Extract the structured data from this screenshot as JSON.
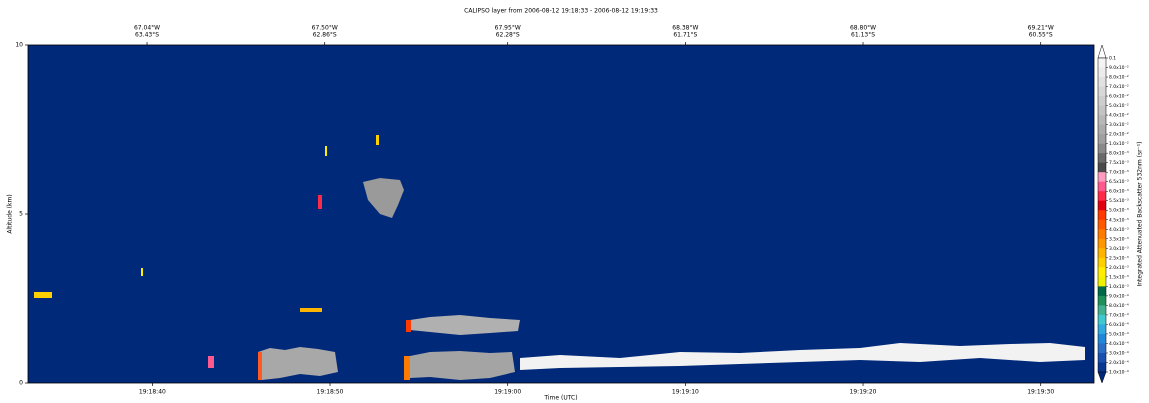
{
  "chart_data": {
    "type": "curtain",
    "title": "CALIPSO layer from 2006-08-12 19:18:33  -  2006-08-12 19:19:33",
    "xlabel": "Time (UTC)",
    "ylabel": "Altitude (km)",
    "xlim": [
      69513,
      69573
    ],
    "xticks": [
      {
        "value": 69520,
        "label": "19:18:40"
      },
      {
        "value": 69530,
        "label": "19:18:50"
      },
      {
        "value": 69540,
        "label": "19:19:00"
      },
      {
        "value": 69550,
        "label": "19:19:10"
      },
      {
        "value": 69560,
        "label": "19:19:20"
      },
      {
        "value": 69570,
        "label": "19:19:30"
      }
    ],
    "top_ticks": [
      {
        "value": 69519.7,
        "lon": "67.04°W",
        "lat": "63.43°S"
      },
      {
        "value": 69529.7,
        "lon": "67.50°W",
        "lat": "62.86°S"
      },
      {
        "value": 69540,
        "lon": "67.95°W",
        "lat": "62.28°S"
      },
      {
        "value": 69550,
        "lon": "68.38°W",
        "lat": "61.71°S"
      },
      {
        "value": 69560,
        "lon": "68.80°W",
        "lat": "61.13°S"
      },
      {
        "value": 69570,
        "lon": "69.21°W",
        "lat": "60.55°S"
      }
    ],
    "ylim": [
      0,
      10
    ],
    "yticks": [
      0,
      5,
      10
    ],
    "background": "#00297a",
    "colorbar": {
      "label": "Integrated Attenuated Backscatter 532nm (sr⁻¹)",
      "ticks": [
        {
          "value": 0.1,
          "label": "0.1"
        },
        {
          "value": 0.09,
          "label": "9.0x10⁻²"
        },
        {
          "value": 0.08,
          "label": "8.0x10⁻²"
        },
        {
          "value": 0.07,
          "label": "7.0x10⁻²"
        },
        {
          "value": 0.06,
          "label": "6.0x10⁻²"
        },
        {
          "value": 0.05,
          "label": "5.0x10⁻²"
        },
        {
          "value": 0.04,
          "label": "4.0x10⁻²"
        },
        {
          "value": 0.03,
          "label": "3.0x10⁻²"
        },
        {
          "value": 0.02,
          "label": "2.0x10⁻²"
        },
        {
          "value": 0.01,
          "label": "1.0x10⁻²"
        },
        {
          "value": 0.008,
          "label": "8.0x10⁻³"
        },
        {
          "value": 0.0075,
          "label": "7.5x10⁻³"
        },
        {
          "value": 0.007,
          "label": "7.0x10⁻³"
        },
        {
          "value": 0.0065,
          "label": "6.5x10⁻³"
        },
        {
          "value": 0.006,
          "label": "6.0x10⁻³"
        },
        {
          "value": 0.0055,
          "label": "5.5x10⁻³"
        },
        {
          "value": 0.005,
          "label": "5.0x10⁻³"
        },
        {
          "value": 0.0045,
          "label": "4.5x10⁻³"
        },
        {
          "value": 0.004,
          "label": "4.0x10⁻³"
        },
        {
          "value": 0.0035,
          "label": "3.5x10⁻³"
        },
        {
          "value": 0.003,
          "label": "3.0x10⁻³"
        },
        {
          "value": 0.0025,
          "label": "2.5x10⁻³"
        },
        {
          "value": 0.002,
          "label": "2.0x10⁻³"
        },
        {
          "value": 0.0015,
          "label": "1.5x10⁻³"
        },
        {
          "value": 0.001,
          "label": "1.0x10⁻³"
        },
        {
          "value": 0.0009,
          "label": "9.0x10⁻⁴"
        },
        {
          "value": 0.0008,
          "label": "8.0x10⁻⁴"
        },
        {
          "value": 0.0007,
          "label": "7.0x10⁻⁴"
        },
        {
          "value": 0.0006,
          "label": "6.0x10⁻⁴"
        },
        {
          "value": 0.0005,
          "label": "5.0x10⁻⁴"
        },
        {
          "value": 0.0004,
          "label": "4.0x10⁻⁴"
        },
        {
          "value": 0.0003,
          "label": "3.0x10⁻⁴"
        },
        {
          "value": 0.0002,
          "label": "2.0x10⁻⁴"
        },
        {
          "value": 0.0001,
          "label": "1.0x10⁻⁴"
        }
      ],
      "colors": [
        "#f4f4f4",
        "#ececec",
        "#e2e2e2",
        "#d8d8d8",
        "#cecece",
        "#c4c4c4",
        "#b8b8b8",
        "#acacac",
        "#a0a0a0",
        "#8a8a8a",
        "#6a6a6a",
        "#4a4a4a",
        "#ff9ac0",
        "#ff5a90",
        "#ff2a4a",
        "#e00010",
        "#ff3a00",
        "#ff5a00",
        "#ff7a00",
        "#ff9800",
        "#ffb400",
        "#ffd000",
        "#ffee00",
        "#f0f000",
        "#006a48",
        "#20905a",
        "#40b090",
        "#40c8d0",
        "#30a8e0",
        "#2088d8",
        "#2a6ec8",
        "#1a50b0",
        "#0a3890"
      ],
      "over": "#ffffff",
      "under": "#00297a"
    }
  }
}
